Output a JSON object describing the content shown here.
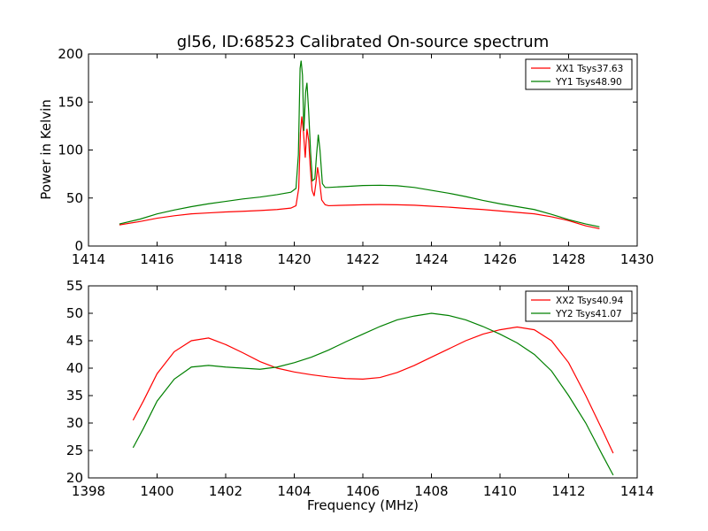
{
  "figure": {
    "title": "gl56, ID:68523 Calibrated On-source spectrum",
    "xlabel": "Frequency (MHz)",
    "ylabel": "Power in Kelvin"
  },
  "chart_data": [
    {
      "type": "line",
      "xlim": [
        1414,
        1430
      ],
      "ylim": [
        0,
        200
      ],
      "xticks": [
        1414,
        1416,
        1418,
        1420,
        1422,
        1424,
        1426,
        1428,
        1430
      ],
      "yticks": [
        0,
        50,
        100,
        150,
        200
      ],
      "legend_position": "top-right",
      "grid": false,
      "series": [
        {
          "name": "XX1 Tsys37.63",
          "color": "#ff0000",
          "points": [
            [
              1414.9,
              22
            ],
            [
              1415.5,
              25.5
            ],
            [
              1416,
              29
            ],
            [
              1416.5,
              31.5
            ],
            [
              1417,
              33.5
            ],
            [
              1417.5,
              34.5
            ],
            [
              1418,
              35.5
            ],
            [
              1418.5,
              36.2
            ],
            [
              1419,
              37
            ],
            [
              1419.5,
              38
            ],
            [
              1419.9,
              39.5
            ],
            [
              1420.05,
              42
            ],
            [
              1420.13,
              60
            ],
            [
              1420.18,
              118
            ],
            [
              1420.22,
              135
            ],
            [
              1420.27,
              118
            ],
            [
              1420.32,
              92
            ],
            [
              1420.37,
              122
            ],
            [
              1420.42,
              110
            ],
            [
              1420.47,
              80
            ],
            [
              1420.52,
              58
            ],
            [
              1420.58,
              52
            ],
            [
              1420.63,
              65
            ],
            [
              1420.68,
              82
            ],
            [
              1420.73,
              70
            ],
            [
              1420.8,
              48
            ],
            [
              1420.9,
              43
            ],
            [
              1421,
              42
            ],
            [
              1421.5,
              42.5
            ],
            [
              1422,
              43
            ],
            [
              1422.5,
              43.2
            ],
            [
              1423,
              43
            ],
            [
              1423.5,
              42.5
            ],
            [
              1424,
              41.5
            ],
            [
              1424.5,
              40.5
            ],
            [
              1425,
              39.2
            ],
            [
              1425.5,
              38
            ],
            [
              1426,
              36.5
            ],
            [
              1426.5,
              35
            ],
            [
              1427,
              33.5
            ],
            [
              1427.5,
              30.5
            ],
            [
              1428,
              26.5
            ],
            [
              1428.5,
              21
            ],
            [
              1428.9,
              18
            ]
          ]
        },
        {
          "name": "YY1 Tsys48.90",
          "color": "#008000",
          "points": [
            [
              1414.9,
              23
            ],
            [
              1415.5,
              28
            ],
            [
              1416,
              33.5
            ],
            [
              1416.5,
              37.5
            ],
            [
              1417,
              41
            ],
            [
              1417.5,
              44
            ],
            [
              1418,
              46.5
            ],
            [
              1418.5,
              49
            ],
            [
              1419,
              51
            ],
            [
              1419.5,
              53.5
            ],
            [
              1419.9,
              56
            ],
            [
              1420.05,
              60
            ],
            [
              1420.12,
              95
            ],
            [
              1420.17,
              185
            ],
            [
              1420.2,
              193
            ],
            [
              1420.24,
              178
            ],
            [
              1420.28,
              120
            ],
            [
              1420.33,
              160
            ],
            [
              1420.37,
              170
            ],
            [
              1420.42,
              140
            ],
            [
              1420.48,
              95
            ],
            [
              1420.53,
              68
            ],
            [
              1420.6,
              70
            ],
            [
              1420.65,
              95
            ],
            [
              1420.7,
              116
            ],
            [
              1420.75,
              100
            ],
            [
              1420.82,
              65
            ],
            [
              1420.9,
              61
            ],
            [
              1421,
              61
            ],
            [
              1421.5,
              62
            ],
            [
              1422,
              63
            ],
            [
              1422.5,
              63.3
            ],
            [
              1423,
              62.8
            ],
            [
              1423.5,
              61
            ],
            [
              1424,
              58
            ],
            [
              1424.5,
              55
            ],
            [
              1425,
              51.5
            ],
            [
              1425.5,
              47.5
            ],
            [
              1426,
              44
            ],
            [
              1426.5,
              41
            ],
            [
              1427,
              38
            ],
            [
              1427.5,
              33
            ],
            [
              1428,
              27.5
            ],
            [
              1428.5,
              23
            ],
            [
              1428.9,
              20
            ]
          ]
        }
      ]
    },
    {
      "type": "line",
      "xlim": [
        1398,
        1414
      ],
      "ylim": [
        20,
        55
      ],
      "xticks": [
        1398,
        1400,
        1402,
        1404,
        1406,
        1408,
        1410,
        1412,
        1414
      ],
      "yticks": [
        20,
        25,
        30,
        35,
        40,
        45,
        50,
        55
      ],
      "legend_position": "top-right",
      "grid": false,
      "series": [
        {
          "name": "XX2 Tsys40.94",
          "color": "#ff0000",
          "points": [
            [
              1399.3,
              30.5
            ],
            [
              1399.6,
              34
            ],
            [
              1400,
              39
            ],
            [
              1400.5,
              43
            ],
            [
              1401,
              45
            ],
            [
              1401.5,
              45.5
            ],
            [
              1402,
              44.3
            ],
            [
              1402.5,
              42.8
            ],
            [
              1403,
              41.2
            ],
            [
              1403.5,
              40
            ],
            [
              1404,
              39.3
            ],
            [
              1404.5,
              38.8
            ],
            [
              1405,
              38.4
            ],
            [
              1405.5,
              38.1
            ],
            [
              1406,
              38
            ],
            [
              1406.5,
              38.3
            ],
            [
              1407,
              39.2
            ],
            [
              1407.5,
              40.5
            ],
            [
              1408,
              42
            ],
            [
              1408.5,
              43.5
            ],
            [
              1409,
              45
            ],
            [
              1409.5,
              46.2
            ],
            [
              1410,
              47
            ],
            [
              1410.5,
              47.5
            ],
            [
              1411,
              47
            ],
            [
              1411.5,
              45
            ],
            [
              1412,
              41
            ],
            [
              1412.5,
              35
            ],
            [
              1413,
              28.5
            ],
            [
              1413.3,
              24.5
            ]
          ]
        },
        {
          "name": "YY2 Tsys41.07",
          "color": "#008000",
          "points": [
            [
              1399.3,
              25.5
            ],
            [
              1399.6,
              29
            ],
            [
              1400,
              34
            ],
            [
              1400.5,
              38
            ],
            [
              1401,
              40.2
            ],
            [
              1401.5,
              40.5
            ],
            [
              1402,
              40.2
            ],
            [
              1402.5,
              40
            ],
            [
              1403,
              39.8
            ],
            [
              1403.5,
              40.2
            ],
            [
              1404,
              41
            ],
            [
              1404.5,
              42
            ],
            [
              1405,
              43.3
            ],
            [
              1405.5,
              44.8
            ],
            [
              1406,
              46.2
            ],
            [
              1406.5,
              47.6
            ],
            [
              1407,
              48.8
            ],
            [
              1407.5,
              49.5
            ],
            [
              1408,
              50
            ],
            [
              1408.5,
              49.6
            ],
            [
              1409,
              48.8
            ],
            [
              1409.5,
              47.6
            ],
            [
              1410,
              46.2
            ],
            [
              1410.5,
              44.6
            ],
            [
              1411,
              42.5
            ],
            [
              1411.5,
              39.5
            ],
            [
              1412,
              35
            ],
            [
              1412.5,
              30
            ],
            [
              1413,
              24
            ],
            [
              1413.3,
              20.5
            ]
          ]
        }
      ]
    }
  ]
}
